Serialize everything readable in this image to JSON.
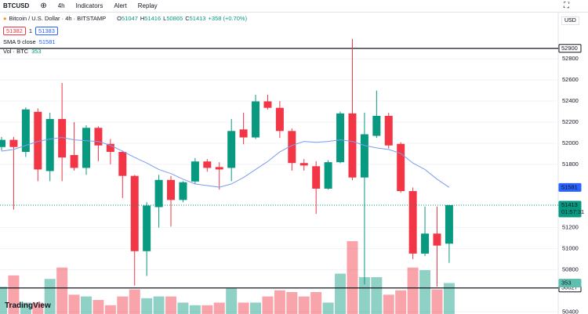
{
  "toolbar": {
    "symbol": "BTCUSD",
    "interval": "4h",
    "indicators": "Indicators",
    "alert": "Alert",
    "replay": "Replay"
  },
  "chart_data": {
    "type": "candlestick",
    "title": "Bitcoin / U.S. Dollar · 4h · BITSTAMP",
    "ohlc_labels": [
      "O",
      "H",
      "L",
      "C"
    ],
    "change": "+358 (+0.70%)",
    "bid": 51382,
    "spread": 1,
    "ask": 51383,
    "sma_label": "SMA 9 close",
    "volume_label": "Vol · BTC",
    "currency": "USD",
    "countdown": "01:57:31",
    "logo": "TradingView",
    "series": [
      {
        "name": "BTCUSD",
        "up_color": "#089981",
        "down_color": "#f23645",
        "open": [
          51964,
          52032,
          51918,
          52298,
          51736,
          52230,
          51888,
          51766,
          52146,
          51994,
          51918,
          51690,
          50976,
          51394,
          51652,
          51462,
          51637,
          51827,
          51774,
          51766,
          52131,
          52055,
          52397,
          52336,
          52116,
          51812,
          51782,
          51569,
          51820,
          52283,
          51675,
          52070,
          52260,
          51994,
          51546,
          50953,
          51143,
          51047
        ],
        "high": [
          52060,
          52060,
          52340,
          52330,
          52290,
          52572,
          52200,
          52170,
          52160,
          52040,
          51930,
          51700,
          51440,
          51700,
          51690,
          51640,
          51860,
          51850,
          51820,
          52230,
          52290,
          52460,
          52460,
          52400,
          52140,
          51850,
          51830,
          51840,
          52300,
          52990,
          52290,
          52500,
          52290,
          52010,
          51580,
          51400,
          51400,
          51416
        ],
        "low": [
          51930,
          51371,
          51870,
          51640,
          51640,
          51640,
          51740,
          51700,
          51830,
          51800,
          51480,
          50649,
          50740,
          51200,
          51210,
          51440,
          51610,
          51730,
          51560,
          51640,
          51990,
          52040,
          52320,
          52050,
          51740,
          51740,
          51330,
          51560,
          51810,
          51650,
          50660,
          52050,
          51950,
          51530,
          50900,
          50930,
          50640,
          50865
        ],
        "close": [
          52032,
          51964,
          52321,
          51751,
          52230,
          51865,
          51766,
          52146,
          51979,
          51918,
          51690,
          50976,
          51409,
          51652,
          51462,
          51630,
          51827,
          51766,
          51751,
          52116,
          52055,
          52397,
          52336,
          52116,
          51812,
          51789,
          51569,
          51820,
          52283,
          51675,
          52085,
          52260,
          51979,
          51546,
          50953,
          51143,
          51029,
          51413
        ]
      }
    ],
    "sma": {
      "color": "#7b9cf0",
      "values": [
        51925,
        51941,
        51979,
        52017,
        52039,
        52055,
        52032,
        52024,
        52017,
        51979,
        51925,
        51865,
        51812,
        51751,
        51712,
        51659,
        51614,
        51598,
        51583,
        51614,
        51675,
        51751,
        51827,
        51918,
        51979,
        52017,
        52009,
        52017,
        52032,
        52017,
        51979,
        51956,
        51941,
        51903,
        51812,
        51751,
        51659,
        51581
      ]
    },
    "volume": {
      "values": [
        310,
        440,
        130,
        130,
        400,
        530,
        220,
        200,
        160,
        100,
        200,
        280,
        180,
        200,
        200,
        130,
        100,
        100,
        130,
        290,
        130,
        130,
        200,
        270,
        250,
        200,
        250,
        130,
        460,
        830,
        420,
        420,
        220,
        270,
        530,
        500,
        280,
        353
      ]
    },
    "price_lines": [
      52900,
      50627
    ],
    "ylim": [
      50380,
      53240
    ],
    "yticks": [
      50400,
      50800,
      51000,
      51200,
      51800,
      52000,
      52200,
      52400,
      52600,
      52800
    ]
  }
}
